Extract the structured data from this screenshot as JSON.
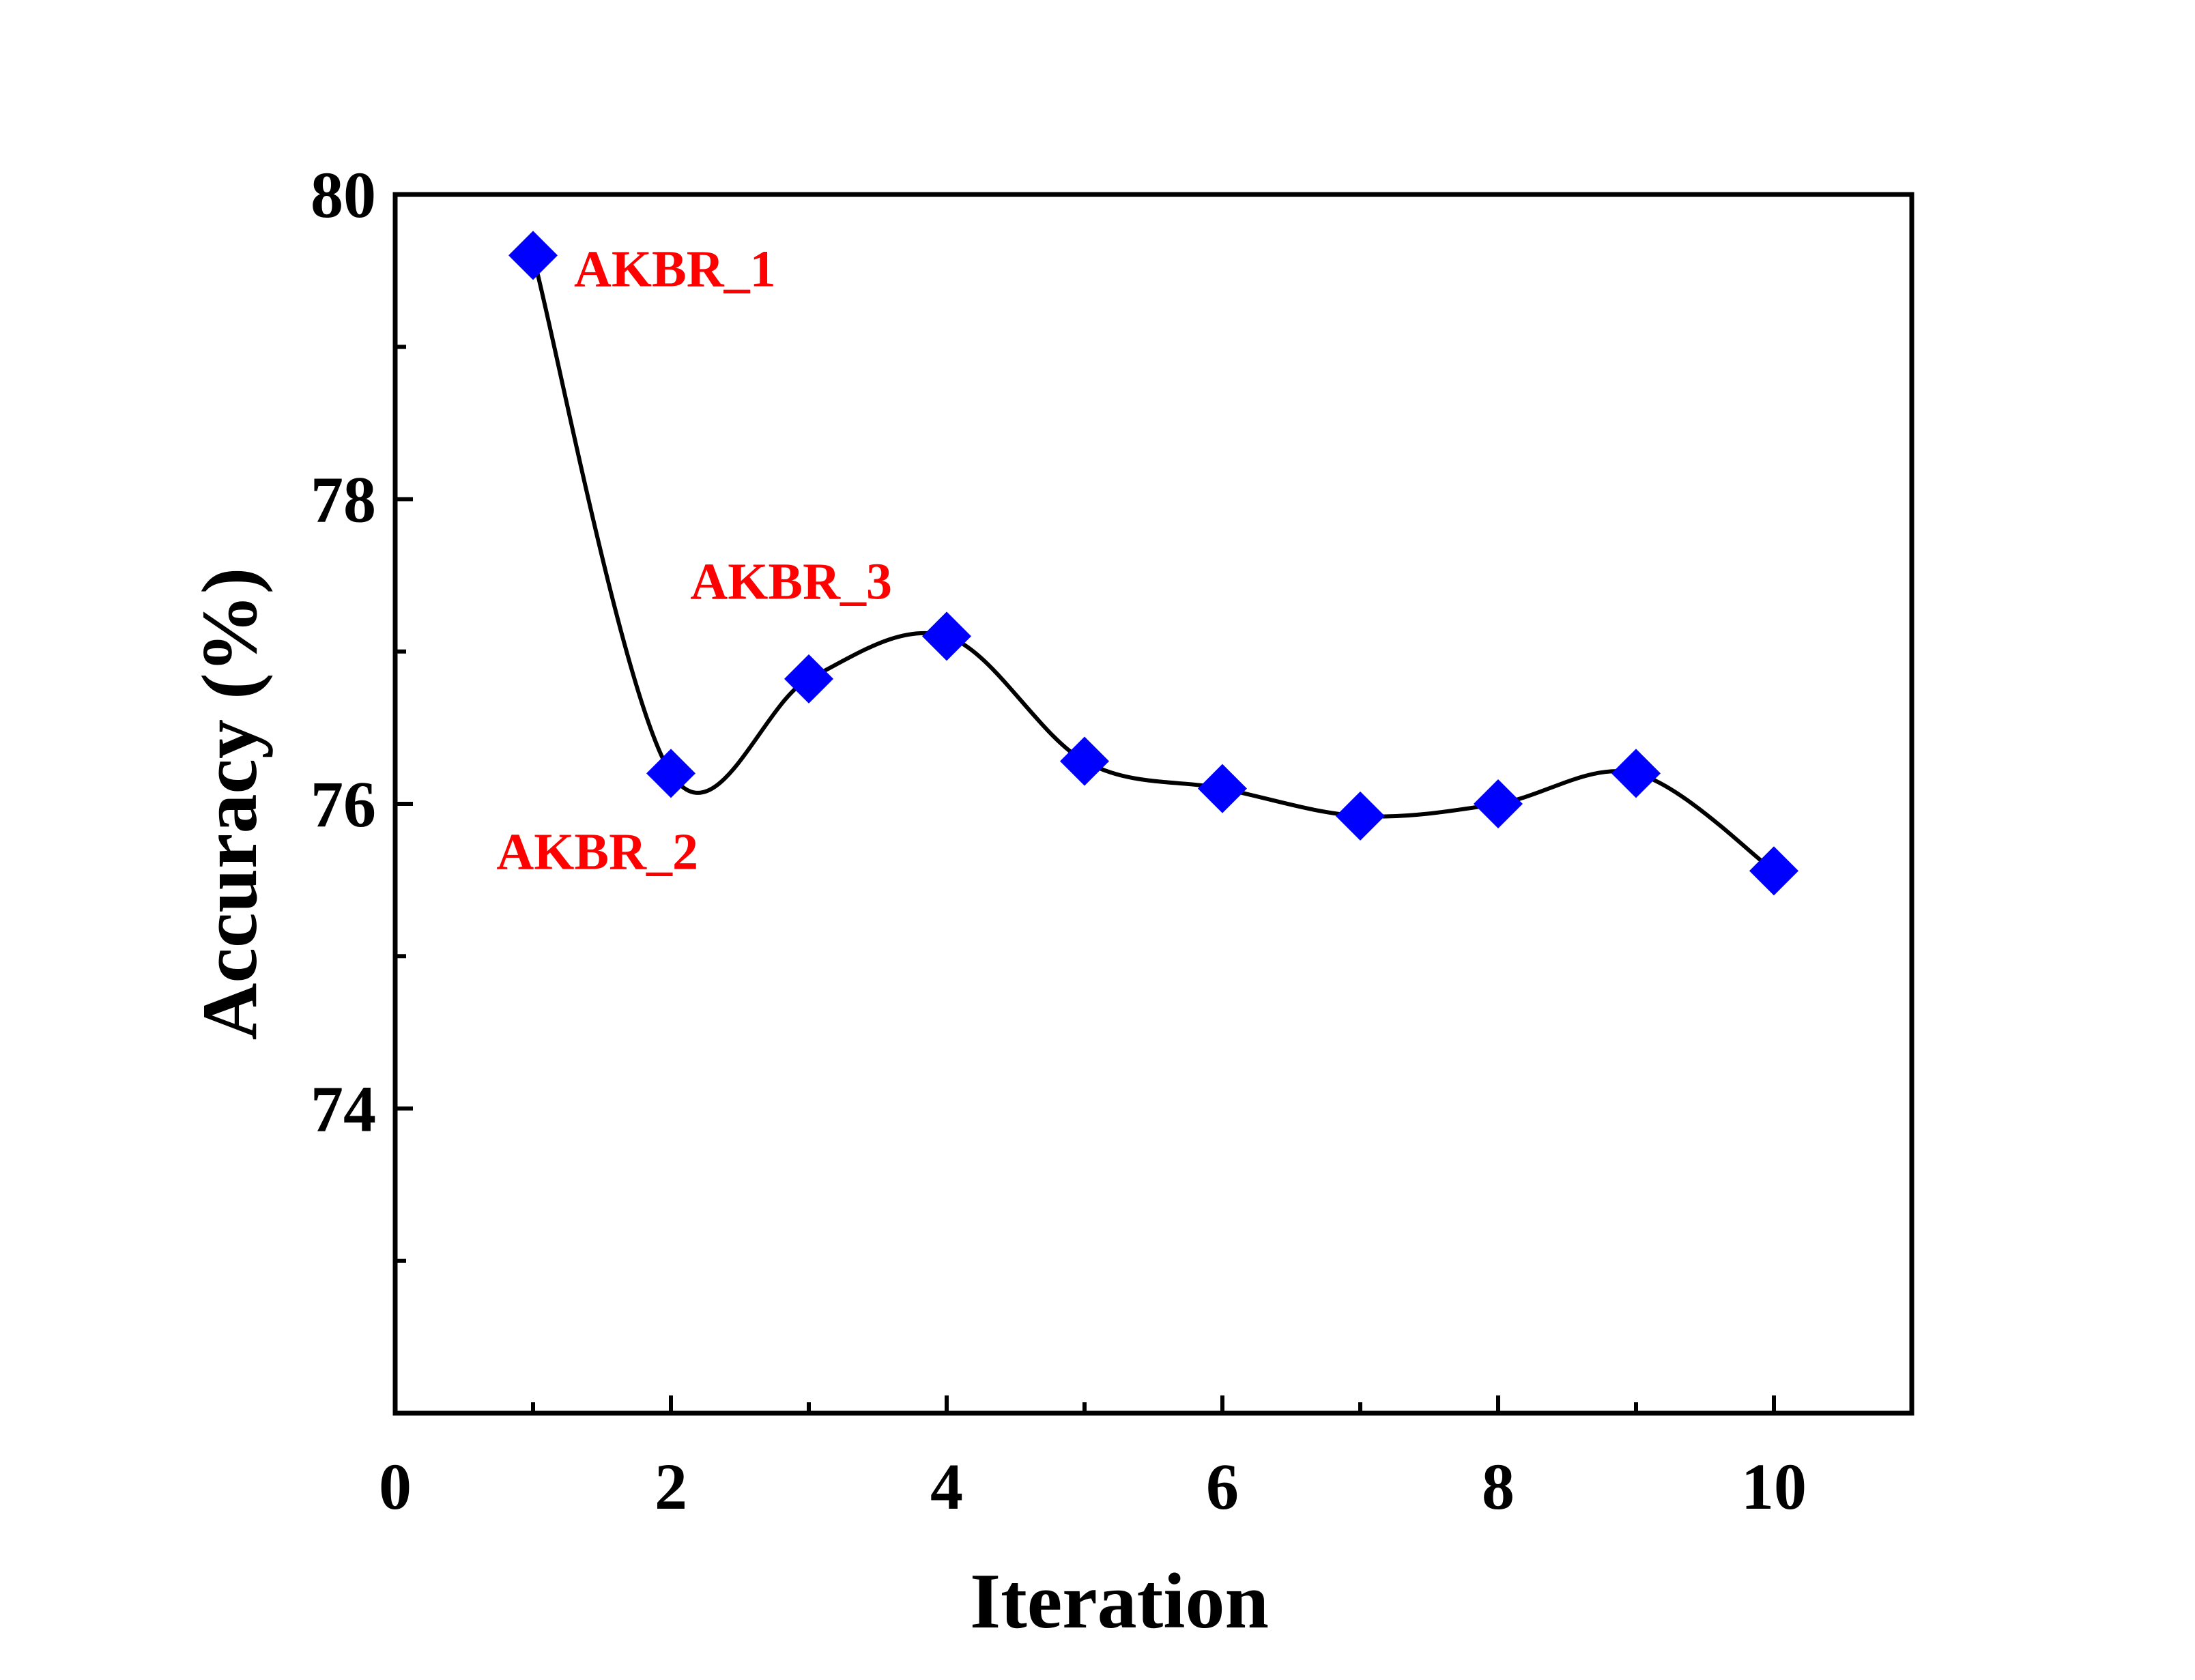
{
  "chart_data": {
    "type": "line",
    "title": "",
    "xlabel": "Iteration",
    "ylabel": "Accuracy (%)",
    "xlim": [
      0,
      11
    ],
    "ylim": [
      72,
      80
    ],
    "x_ticks": [
      "0",
      "2",
      "4",
      "6",
      "8",
      "10"
    ],
    "y_ticks": [
      "74",
      "76",
      "78",
      "80"
    ],
    "grid": false,
    "legend": "none",
    "series": [
      {
        "x": [
          1,
          2,
          3,
          4,
          5,
          6,
          7,
          8,
          9,
          10
        ],
        "values": [
          79.6,
          76.2,
          76.82,
          77.1,
          76.28,
          76.1,
          75.92,
          76.0,
          76.2,
          75.56
        ],
        "marker": "diamond",
        "marker_color": "#0000ff",
        "line_color": "#000000",
        "line_style": "smooth"
      }
    ],
    "annotations": [
      {
        "text": "AKBR_1",
        "x": 1,
        "y": 79.6
      },
      {
        "text": "AKBR_2",
        "x": 2,
        "y": 76.2
      },
      {
        "text": "AKBR_3",
        "x": 4,
        "y": 77.1
      }
    ],
    "colors": {
      "annotation": "#ff0000",
      "marker": "#0000ff",
      "line": "#000000"
    }
  }
}
